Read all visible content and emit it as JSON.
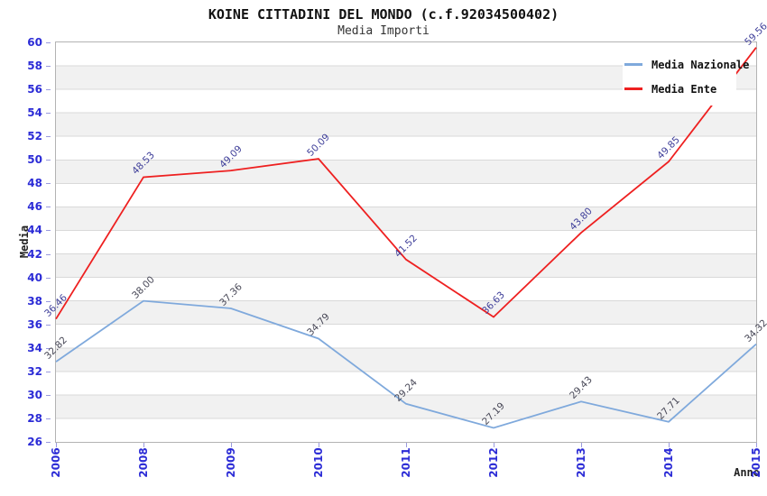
{
  "window": {
    "background": "#ffffff"
  },
  "chart_data": {
    "type": "line",
    "title": "KOINE CITTADINI DEL MONDO (c.f.92034500402)",
    "subtitle": "Media Importi",
    "xlabel": "Anno",
    "ylabel": "Media",
    "categories": [
      "2006",
      "2008",
      "2009",
      "2010",
      "2011",
      "2012",
      "2013",
      "2014",
      "2015"
    ],
    "series": [
      {
        "name": "Media Nazionale",
        "color": "#7fa9dc",
        "label_color": "#474756",
        "values": [
          32.82,
          38.0,
          37.36,
          34.79,
          29.24,
          27.19,
          29.43,
          27.71,
          34.32
        ]
      },
      {
        "name": "Media Ente",
        "color": "#ee2020",
        "label_color": "#3e3e99",
        "values": [
          36.46,
          48.53,
          49.09,
          50.09,
          41.52,
          36.63,
          43.8,
          49.85,
          59.56
        ]
      }
    ],
    "ylim": [
      26,
      60
    ],
    "ytick_step": 2,
    "grid": "horizontal-bands",
    "band_colors": [
      "#ffffff",
      "#f1f1f1"
    ],
    "band_edge_color": "#d9d9d9",
    "plot_border_color": "#b3b3b3",
    "tick_label_color": "#2b2bd6",
    "tick_mark_color": "#9a9ade",
    "legend_position": "top-right",
    "value_label_format": "0.00"
  }
}
